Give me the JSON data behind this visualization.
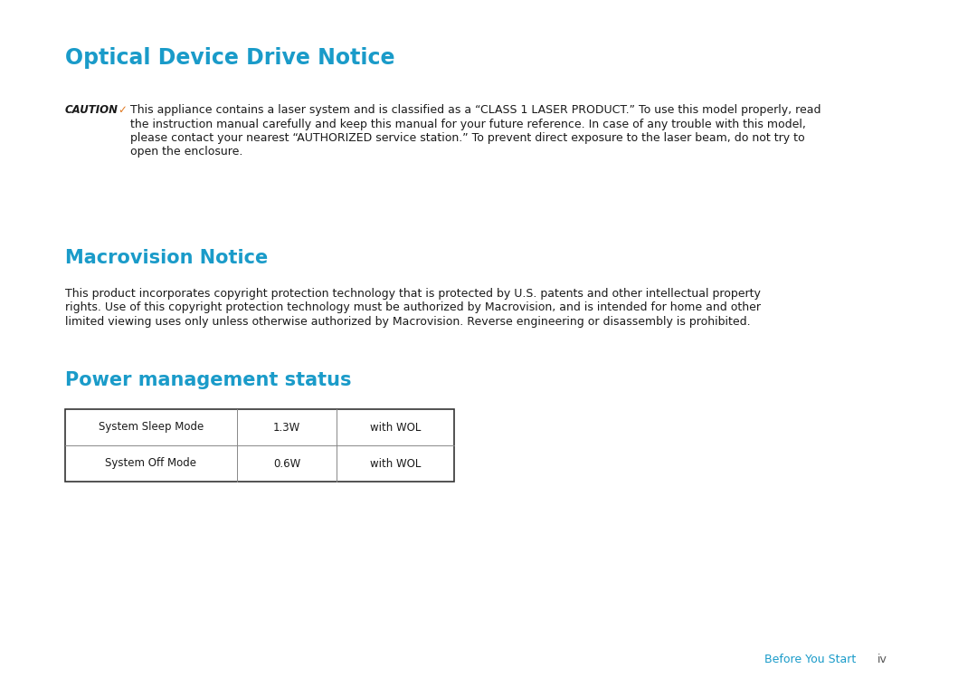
{
  "background_color": "#ffffff",
  "heading_color": "#1a9bc9",
  "text_color": "#1a1a1a",
  "footer_link_color": "#1a9bc9",
  "footer_text_color": "#555555",
  "title1": "Optical Device Drive Notice",
  "title2": "Macrovision Notice",
  "title3": "Power management status",
  "caution_label": "CAUTION",
  "caution_check": "✓",
  "caution_text_line1": "This appliance contains a laser system and is classified as a “CLASS 1 LASER PRODUCT.” To use this model properly, read",
  "caution_text_line2": "the instruction manual carefully and keep this manual for your future reference. In case of any trouble with this model,",
  "caution_text_line3": "please contact your nearest “AUTHORIZED service station.” To prevent direct exposure to the laser beam, do not try to",
  "caution_text_line4": "open the enclosure.",
  "macrovision_text_line1": "This product incorporates copyright protection technology that is protected by U.S. patents and other intellectual property",
  "macrovision_text_line2": "rights. Use of this copyright protection technology must be authorized by Macrovision, and is intended for home and other",
  "macrovision_text_line3": "limited viewing uses only unless otherwise authorized by Macrovision. Reverse engineering or disassembly is prohibited.",
  "table_rows": [
    [
      "System Sleep Mode",
      "1.3W",
      "with WOL"
    ],
    [
      "System Off Mode",
      "0.6W",
      "with WOL"
    ]
  ],
  "footer_link": "Before You Start",
  "footer_page": "iv",
  "title1_fontsize": 17,
  "heading_fontsize": 15,
  "body_fontsize": 9.0,
  "caution_label_fontsize": 8.5,
  "table_fontsize": 8.5,
  "footer_fontsize": 9.0
}
